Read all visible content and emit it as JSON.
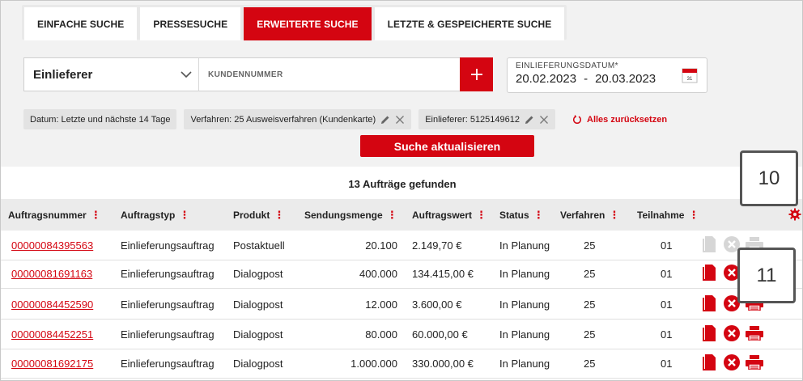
{
  "tabs": [
    {
      "label": "EINFACHE SUCHE",
      "active": false
    },
    {
      "label": "PRESSESUCHE",
      "active": false
    },
    {
      "label": "ERWEITERTE SUCHE",
      "active": true
    },
    {
      "label": "LETZTE & GESPEICHERTE SUCHE",
      "active": false
    }
  ],
  "search": {
    "select_value": "Einlieferer",
    "input_placeholder": "KUNDENNUMMER",
    "date_label": "EINLIEFERUNGSDATUM*",
    "date_from": "20.02.2023",
    "date_sep": "-",
    "date_to": "20.03.2023",
    "calendar_day": "31"
  },
  "chips": [
    {
      "label": "Datum: Letzte und nächste 14 Tage",
      "editable": false
    },
    {
      "label": "Verfahren: 25 Ausweisverfahren (Kundenkarte)",
      "editable": true
    },
    {
      "label": "Einlieferer: 5125149612",
      "editable": true
    }
  ],
  "reset_label": "Alles zurücksetzen",
  "update_label": "Suche aktualisieren",
  "results_title": "13 Aufträge gefunden",
  "columns": [
    "Auftragsnummer",
    "Auftragstyp",
    "Produkt",
    "Sendungsmenge",
    "Auftragswert",
    "Status",
    "Verfahren",
    "Teilnahme"
  ],
  "rows": [
    {
      "nr": "00000084395563",
      "typ": "Einlieferungsauftrag",
      "produkt": "Postaktuell",
      "menge": "20.100",
      "wert": "2.149,70 €",
      "status": "In Planung",
      "verfahren": "25",
      "teilnahme": "01",
      "actions_enabled": false
    },
    {
      "nr": "00000081691163",
      "typ": "Einlieferungsauftrag",
      "produkt": "Dialogpost",
      "menge": "400.000",
      "wert": "134.415,00 €",
      "status": "In Planung",
      "verfahren": "25",
      "teilnahme": "01",
      "actions_enabled": true
    },
    {
      "nr": "00000084452590",
      "typ": "Einlieferungsauftrag",
      "produkt": "Dialogpost",
      "menge": "12.000",
      "wert": "3.600,00 €",
      "status": "In Planung",
      "verfahren": "25",
      "teilnahme": "01",
      "actions_enabled": true
    },
    {
      "nr": "00000084452251",
      "typ": "Einlieferungsauftrag",
      "produkt": "Dialogpost",
      "menge": "80.000",
      "wert": "60.000,00 €",
      "status": "In Planung",
      "verfahren": "25",
      "teilnahme": "01",
      "actions_enabled": true
    },
    {
      "nr": "00000081692175",
      "typ": "Einlieferungsauftrag",
      "produkt": "Dialogpost",
      "menge": "1.000.000",
      "wert": "330.000,00 €",
      "status": "In Planung",
      "verfahren": "25",
      "teilnahme": "01",
      "actions_enabled": true
    }
  ],
  "badges": [
    "10",
    "11"
  ],
  "colors": {
    "accent": "#d40511",
    "disabled_icon": "#d6d6d6"
  },
  "icons": {
    "select": "chevron-down-icon",
    "add": "plus-icon",
    "calendar": "calendar-icon",
    "edit": "pencil-icon",
    "remove": "close-icon",
    "reset": "refresh-icon",
    "settings": "gear-icon",
    "doc": "document-icon",
    "cancel": "cancel-circle-icon",
    "print": "printer-icon"
  }
}
